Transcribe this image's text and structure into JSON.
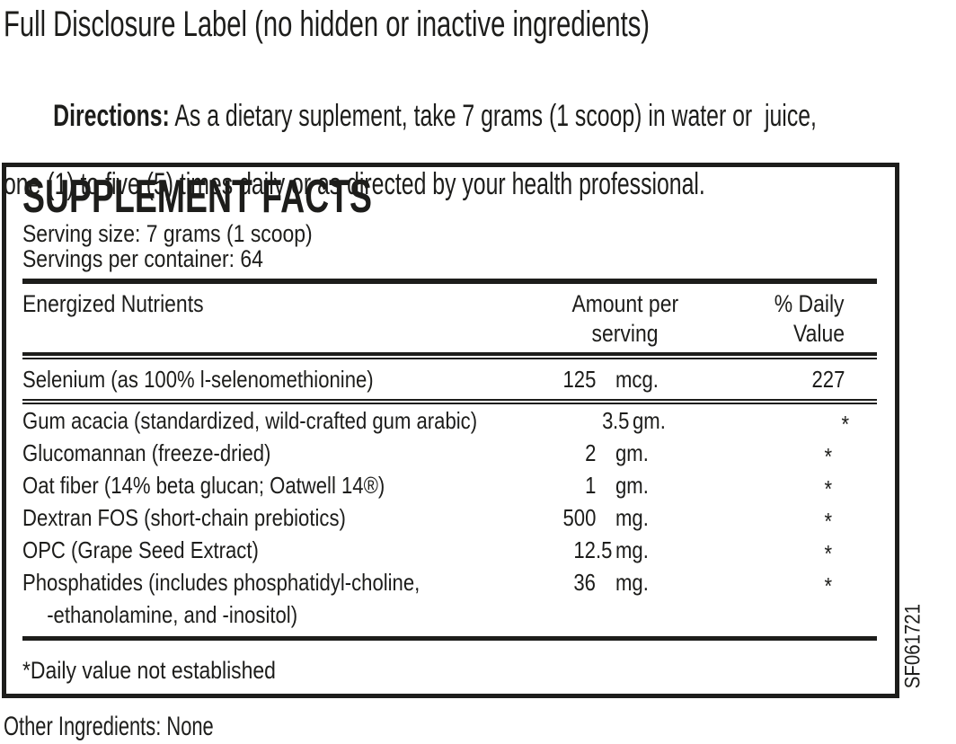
{
  "page": {
    "heading": "Full Disclosure Label (no hidden or inactive ingredients)",
    "directions_label": "Directions:",
    "directions_line1_rest": " As a dietary suplement, take 7 grams (1 scoop) in water or  juice,",
    "directions_line2": "one (1) to five (5) times daily or as directed by your health professional.",
    "other_ingredients": "Other Ingredients: None",
    "side_code": "SF061721"
  },
  "supplement_facts": {
    "title": "SUPPLEMENT FACTS",
    "serving_size": "Serving size: 7 grams (1 scoop)",
    "servings_per_container": "Servings per container: 64",
    "columns": {
      "nutrient": "Energized Nutrients",
      "amount_line1": "Amount per",
      "amount_line2": "serving",
      "dv_line1": "% Daily",
      "dv_line2": "Value"
    },
    "rows": [
      {
        "name": "Selenium (as 100% l-selenomethionine)",
        "amount": "125",
        "unit": "mcg.",
        "dv": "227"
      },
      {
        "name": "Gum acacia (standardized, wild-crafted gum arabic)",
        "amount": "3.5",
        "unit": "gm.",
        "dv": "*"
      },
      {
        "name": "Glucomannan (freeze-dried)",
        "amount": "2",
        "unit": "gm.",
        "dv": "*"
      },
      {
        "name": "Oat fiber (14% beta glucan; Oatwell 14®)",
        "amount": "1",
        "unit": "gm.",
        "dv": "*"
      },
      {
        "name": "Dextran FOS (short-chain prebiotics)",
        "amount": "500",
        "unit": "mg.",
        "dv": "*"
      },
      {
        "name": "OPC (Grape Seed Extract)",
        "amount": "12.5",
        "unit": "mg.",
        "dv": "*"
      },
      {
        "name": "Phosphatides (includes phosphatidyl-choline,",
        "name2": "-ethanolamine, and -inositol)",
        "amount": "36",
        "unit": "mg.",
        "dv": "*"
      }
    ],
    "footnote": "*Daily value not established"
  },
  "colors": {
    "ink": "#1d1d1b",
    "background": "#ffffff"
  }
}
